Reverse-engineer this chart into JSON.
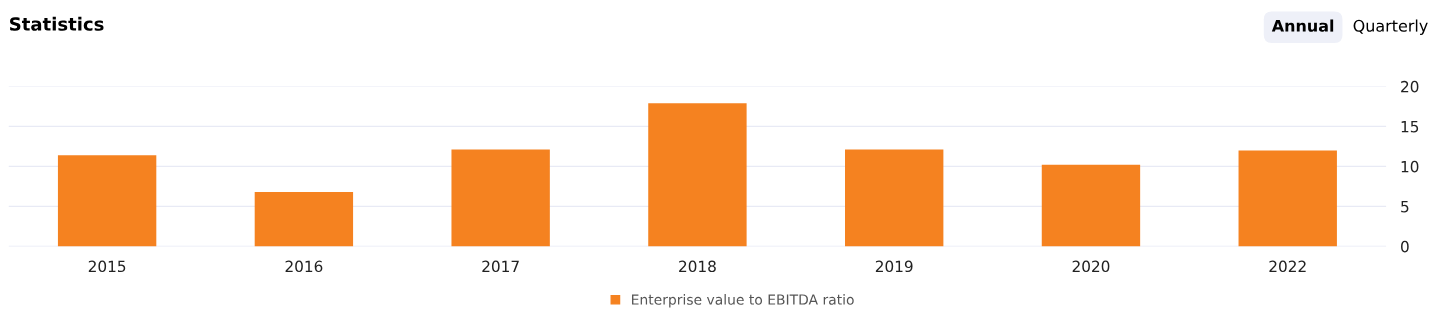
{
  "chart_data": {
    "type": "bar",
    "title": "Statistics",
    "annotations": [
      "Annual",
      "Quarterly"
    ],
    "categories": [
      "2015",
      "2016",
      "2017",
      "2018",
      "2019",
      "2020",
      "2022"
    ],
    "series": [
      {
        "name": "Enterprise value to EBITDA ratio",
        "color": "#f58220",
        "values": [
          11.4,
          6.8,
          12.1,
          17.9,
          12.1,
          10.2,
          12.0
        ]
      }
    ],
    "ylim": [
      0,
      20
    ],
    "yticks": [
      0,
      5,
      10,
      15,
      20
    ],
    "grid": "y",
    "legend": "bottom"
  }
}
